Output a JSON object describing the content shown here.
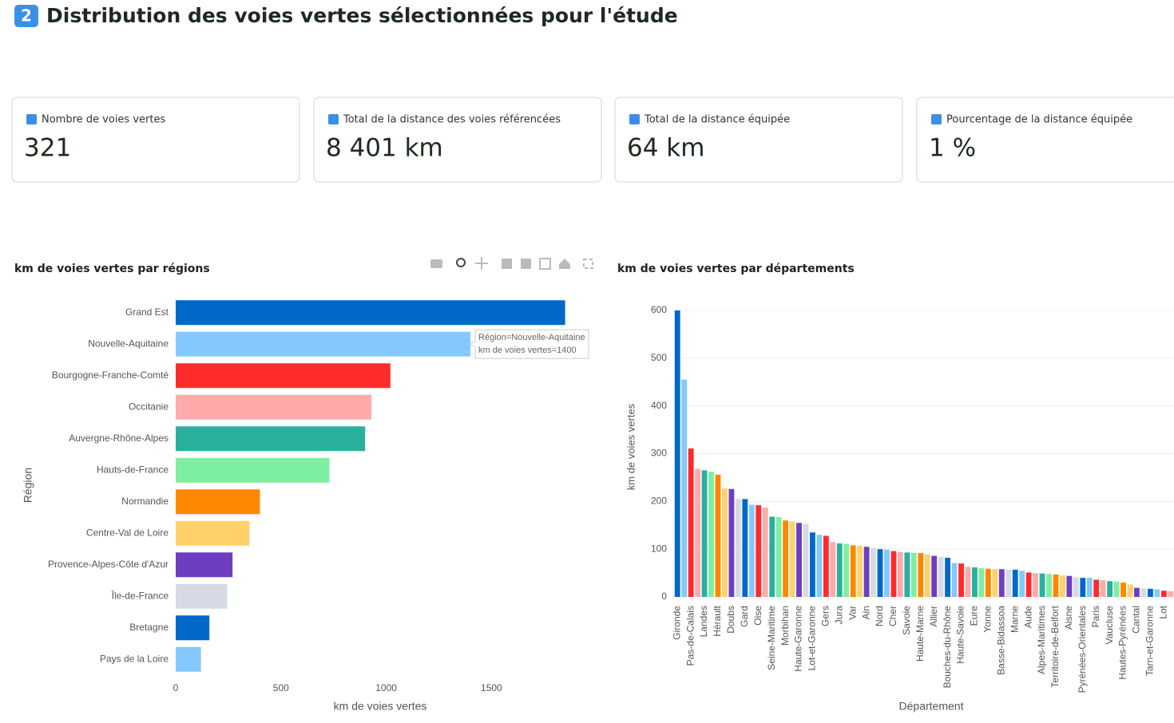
{
  "header": {
    "icon": "2",
    "title": "Distribution des voies vertes sélectionnées pour l'étude"
  },
  "metrics": [
    {
      "label": "Nombre de voies vertes",
      "value": "321"
    },
    {
      "label": "Total de la distance des voies référencées",
      "value": "8 401 km"
    },
    {
      "label": "Total de la distance équipée",
      "value": "64 km"
    },
    {
      "label": "Pourcentage de la distance équipée",
      "value": "1 %"
    }
  ],
  "chart_data": [
    {
      "type": "hbar",
      "title": "km de voies vertes par régions",
      "categories": [
        "Grand Est",
        "Nouvelle-Aquitaine",
        "Bourgogne-Franche-Comté",
        "Occitanie",
        "Auvergne-Rhône-Alpes",
        "Hauts-de-France",
        "Normandie",
        "Centre-Val de Loire",
        "Provence-Alpes-Côte d'Azur",
        "Île-de-France",
        "Bretagne",
        "Pays de la Loire"
      ],
      "values": [
        1850,
        1400,
        1020,
        930,
        900,
        730,
        400,
        350,
        270,
        245,
        160,
        120
      ],
      "colors": [
        "#0068c9",
        "#83c9ff",
        "#ff2b2b",
        "#ffabab",
        "#29b09d",
        "#7defa1",
        "#ff8700",
        "#ffd16a",
        "#6d3fc0",
        "#d5dae5"
      ],
      "xlim": [
        0,
        1950
      ],
      "xticks": [
        0,
        500,
        1000,
        1500
      ],
      "xlabel": "km de voies vertes",
      "ylabel": "Région",
      "tooltip": {
        "category": 1,
        "lines": [
          "Région=Nouvelle-Aquitaine",
          "km de voies vertes=1400"
        ]
      }
    },
    {
      "type": "bar",
      "title": "km de voies vertes par départements",
      "categories": [
        "Gironde",
        null,
        "Pas-de-Calais",
        null,
        "Landes",
        null,
        "Hérault",
        null,
        "Doubs",
        null,
        "Gard",
        null,
        "Oise",
        null,
        "Seine-Maritime",
        null,
        "Morbihan",
        null,
        "Haute-Garonne",
        null,
        "Lot-et-Garonne",
        null,
        "Gers",
        null,
        "Jura",
        null,
        "Var",
        null,
        "Ain",
        null,
        "Nord",
        null,
        "Cher",
        null,
        "Savoie",
        null,
        "Haute-Marne",
        null,
        "Allier",
        null,
        "Bouches-du-Rhône",
        null,
        "Haute-Savoie",
        null,
        "Eure",
        null,
        "Yonne",
        null,
        "Basse-Bidassoa",
        null,
        "Marne",
        null,
        "Aude",
        null,
        "Alpes-Maritimes",
        null,
        "Territoire-de-Belfort",
        null,
        "Aisne",
        null,
        "Pyrénées-Orientales",
        null,
        "Paris",
        null,
        "Vaucluse",
        null,
        "Hautes-Pyrénées",
        null,
        "Cantal",
        null,
        "Tarn-et-Garonne",
        null,
        "Lot",
        null
      ],
      "values": [
        600,
        455,
        311,
        268,
        265,
        262,
        256,
        227,
        226,
        205,
        205,
        193,
        192,
        187,
        168,
        167,
        160,
        158,
        155,
        153,
        135,
        130,
        128,
        115,
        112,
        111,
        108,
        107,
        105,
        103,
        100,
        99,
        96,
        94,
        93,
        92,
        92,
        89,
        86,
        84,
        82,
        71,
        70,
        63,
        62,
        60,
        59,
        58,
        58,
        57,
        57,
        55,
        51,
        50,
        49,
        48,
        47,
        45,
        44,
        41,
        40,
        40,
        36,
        35,
        33,
        32,
        30,
        26,
        19,
        18,
        17,
        16,
        13,
        12
      ],
      "colors": [
        "#0068c9",
        "#83c9ff",
        "#ff2b2b",
        "#ffabab",
        "#29b09d",
        "#7defa1",
        "#ff8700",
        "#ffd16a",
        "#6d3fc0",
        "#d5dae5"
      ],
      "ylim": [
        0,
        615
      ],
      "yticks": [
        0,
        100,
        200,
        300,
        400,
        500,
        600
      ],
      "grid": true,
      "xlabel": "Département",
      "ylabel": "km de voies vertes"
    }
  ]
}
